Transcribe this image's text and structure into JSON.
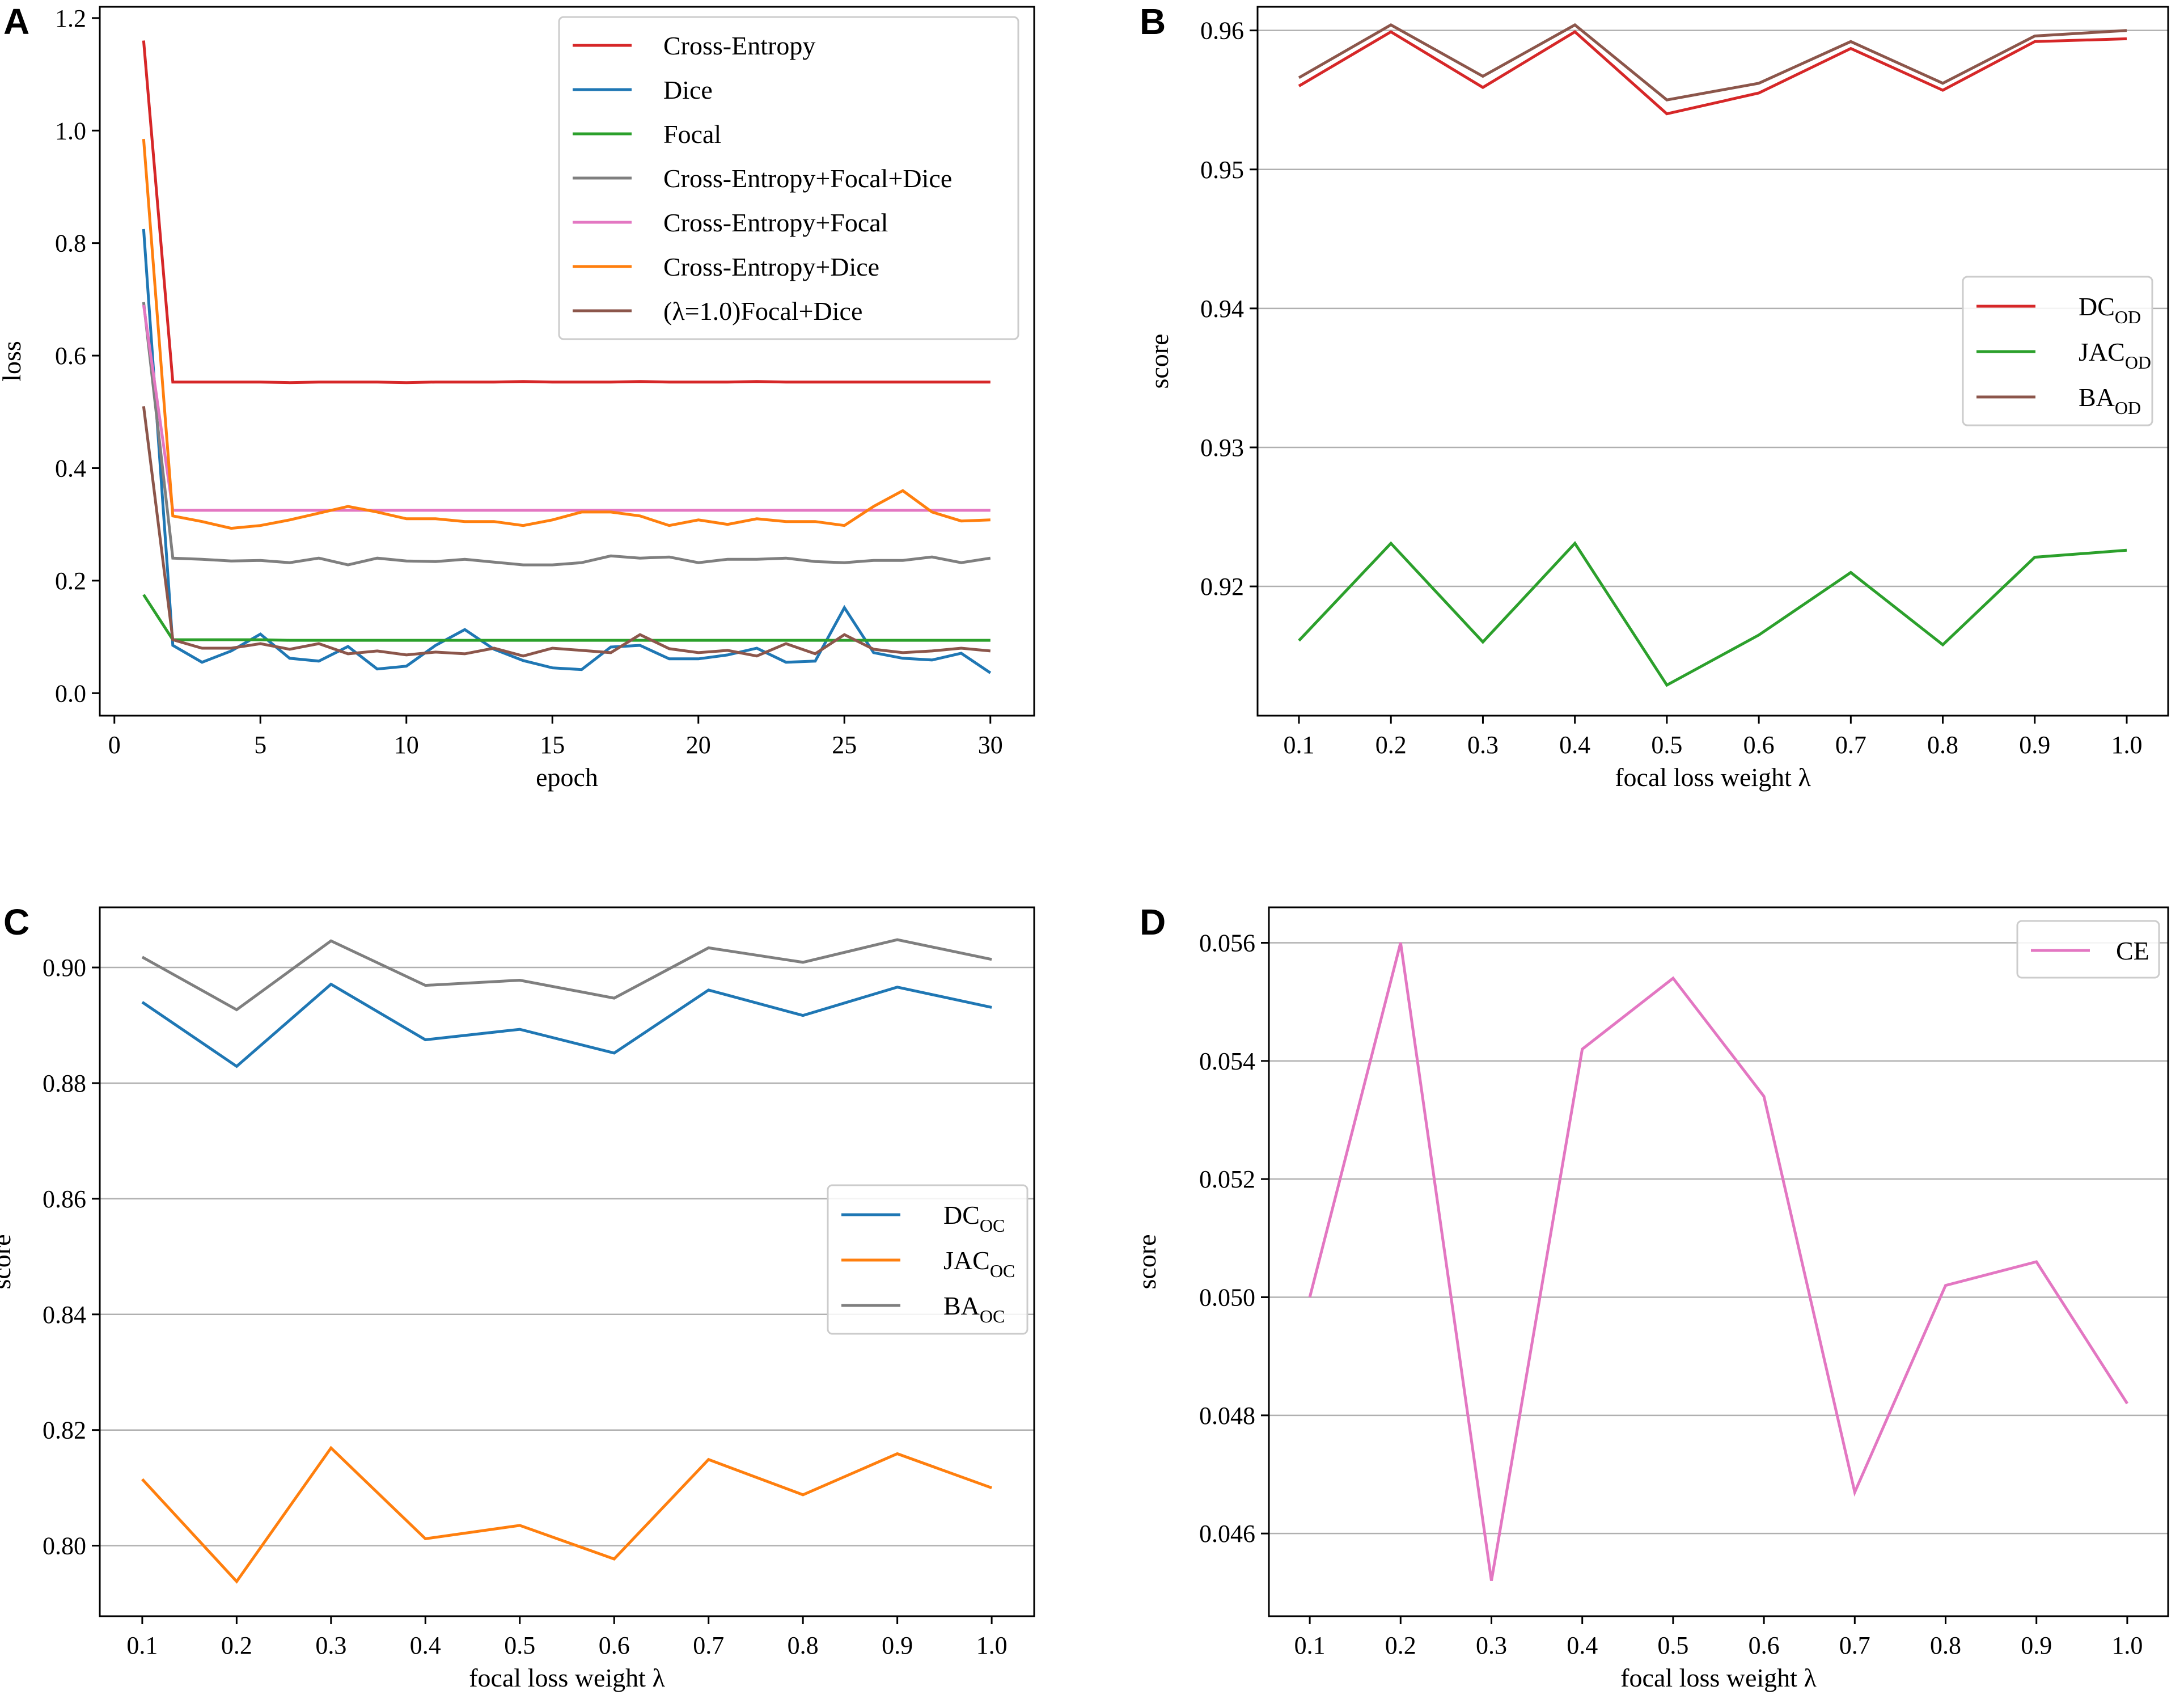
{
  "figure": "four-panel loss function comparison",
  "chart_data": [
    {
      "panel": "A",
      "type": "line",
      "xlabel": "epoch",
      "ylabel": "loss",
      "xlim": [
        -0.5,
        31.5
      ],
      "ylim": [
        -0.04,
        1.22
      ],
      "xticks": [
        0,
        5,
        10,
        15,
        20,
        25,
        30
      ],
      "yticks": [
        0.0,
        0.2,
        0.4,
        0.6,
        0.8,
        1.0,
        1.2
      ],
      "ytick_labels": [
        "0.0",
        "0.2",
        "0.4",
        "0.6",
        "0.8",
        "1.0",
        "1.2"
      ],
      "grid": false,
      "legend_position": "top-right",
      "x": [
        1,
        2,
        3,
        4,
        5,
        6,
        7,
        8,
        9,
        10,
        11,
        12,
        13,
        14,
        15,
        16,
        17,
        18,
        19,
        20,
        21,
        22,
        23,
        24,
        25,
        26,
        27,
        28,
        29,
        30
      ],
      "series": [
        {
          "name": "Cross-Entropy",
          "color": "#d62728",
          "values": [
            1.16,
            0.553,
            0.553,
            0.553,
            0.553,
            0.552,
            0.553,
            0.553,
            0.553,
            0.552,
            0.553,
            0.553,
            0.553,
            0.554,
            0.553,
            0.553,
            0.553,
            0.554,
            0.553,
            0.553,
            0.553,
            0.554,
            0.553,
            0.553,
            0.553,
            0.553,
            0.553,
            0.553,
            0.553,
            0.553
          ]
        },
        {
          "name": "Dice",
          "color": "#1f77b4",
          "values": [
            0.825,
            0.085,
            0.055,
            0.075,
            0.105,
            0.062,
            0.057,
            0.083,
            0.043,
            0.048,
            0.085,
            0.113,
            0.078,
            0.058,
            0.045,
            0.042,
            0.082,
            0.085,
            0.061,
            0.061,
            0.068,
            0.08,
            0.055,
            0.057,
            0.152,
            0.072,
            0.062,
            0.059,
            0.071,
            0.036
          ]
        },
        {
          "name": "Focal",
          "color": "#2ca02c",
          "values": [
            0.175,
            0.095,
            0.095,
            0.095,
            0.095,
            0.094,
            0.094,
            0.094,
            0.094,
            0.094,
            0.094,
            0.094,
            0.094,
            0.094,
            0.094,
            0.094,
            0.094,
            0.094,
            0.094,
            0.094,
            0.094,
            0.094,
            0.094,
            0.094,
            0.094,
            0.094,
            0.094,
            0.094,
            0.094,
            0.094
          ]
        },
        {
          "name": "Cross-Entropy+Focal+Dice",
          "color": "#7f7f7f",
          "values": [
            0.695,
            0.24,
            0.238,
            0.235,
            0.236,
            0.232,
            0.24,
            0.228,
            0.24,
            0.235,
            0.234,
            0.238,
            0.233,
            0.228,
            0.228,
            0.232,
            0.244,
            0.24,
            0.242,
            0.232,
            0.238,
            0.238,
            0.24,
            0.234,
            0.232,
            0.236,
            0.236,
            0.242,
            0.232,
            0.24
          ]
        },
        {
          "name": "Cross-Entropy+Focal",
          "color": "#e377c2",
          "values": [
            0.69,
            0.325,
            0.325,
            0.325,
            0.325,
            0.325,
            0.325,
            0.325,
            0.325,
            0.325,
            0.325,
            0.325,
            0.325,
            0.325,
            0.325,
            0.325,
            0.325,
            0.325,
            0.325,
            0.325,
            0.325,
            0.325,
            0.325,
            0.325,
            0.325,
            0.325,
            0.325,
            0.325,
            0.325,
            0.325
          ]
        },
        {
          "name": "Cross-Entropy+Dice",
          "color": "#ff7f0e",
          "values": [
            0.985,
            0.315,
            0.305,
            0.293,
            0.298,
            0.308,
            0.32,
            0.332,
            0.322,
            0.31,
            0.31,
            0.305,
            0.305,
            0.298,
            0.308,
            0.322,
            0.322,
            0.315,
            0.298,
            0.308,
            0.3,
            0.31,
            0.305,
            0.305,
            0.298,
            0.332,
            0.36,
            0.322,
            0.306,
            0.308
          ]
        },
        {
          "name": "(λ=1.0)Focal+Dice",
          "color": "#8c564b",
          "values": [
            0.51,
            0.095,
            0.08,
            0.08,
            0.088,
            0.078,
            0.088,
            0.07,
            0.075,
            0.068,
            0.073,
            0.07,
            0.08,
            0.066,
            0.08,
            0.076,
            0.072,
            0.104,
            0.079,
            0.072,
            0.076,
            0.066,
            0.088,
            0.07,
            0.104,
            0.078,
            0.072,
            0.075,
            0.08,
            0.075
          ]
        }
      ]
    },
    {
      "panel": "B",
      "type": "line",
      "xlabel": "focal loss weight λ",
      "ylabel": "score",
      "x": [
        0.1,
        0.2,
        0.3,
        0.4,
        0.5,
        0.6,
        0.7,
        0.8,
        0.9,
        1.0
      ],
      "xlim": [
        0.055,
        1.045
      ],
      "ylim": [
        0.9107,
        0.9617
      ],
      "yticks": [
        0.92,
        0.93,
        0.94,
        0.95,
        0.96
      ],
      "ytick_labels": [
        "0.92",
        "0.93",
        "0.94",
        "0.95",
        "0.96"
      ],
      "grid": "horizontal",
      "legend_position": "center-right",
      "series": [
        {
          "name": "DC",
          "sub": "OD",
          "color": "#d62728",
          "values": [
            0.956,
            0.9599,
            0.9559,
            0.9599,
            0.954,
            0.9555,
            0.9587,
            0.9557,
            0.9592,
            0.9594
          ]
        },
        {
          "name": "JAC",
          "sub": "OD",
          "color": "#2ca02c",
          "values": [
            0.9161,
            0.9231,
            0.916,
            0.9231,
            0.9129,
            0.9165,
            0.921,
            0.9158,
            0.9221,
            0.9226
          ]
        },
        {
          "name": "BA",
          "sub": "OD",
          "color": "#8c564b",
          "values": [
            0.9566,
            0.9604,
            0.9567,
            0.9604,
            0.955,
            0.9562,
            0.9592,
            0.9562,
            0.9596,
            0.96
          ]
        }
      ]
    },
    {
      "panel": "C",
      "type": "line",
      "xlabel": "focal loss weight λ",
      "ylabel": "score",
      "x": [
        0.1,
        0.2,
        0.3,
        0.4,
        0.5,
        0.6,
        0.7,
        0.8,
        0.9,
        1.0
      ],
      "xlim": [
        0.055,
        1.045
      ],
      "ylim": [
        0.7878,
        0.9104
      ],
      "yticks": [
        0.8,
        0.82,
        0.84,
        0.86,
        0.88,
        0.9
      ],
      "ytick_labels": [
        "0.80",
        "0.82",
        "0.84",
        "0.86",
        "0.88",
        "0.90"
      ],
      "grid": "horizontal",
      "legend_position": "center-right",
      "series": [
        {
          "name": "DC",
          "sub": "OC",
          "color": "#1f77b4",
          "values": [
            0.894,
            0.8829,
            0.8971,
            0.8875,
            0.8893,
            0.8852,
            0.8961,
            0.8917,
            0.8966,
            0.8931
          ]
        },
        {
          "name": "JAC",
          "sub": "OC",
          "color": "#ff7f0e",
          "values": [
            0.8115,
            0.7938,
            0.8169,
            0.8012,
            0.8035,
            0.7977,
            0.8149,
            0.8088,
            0.8159,
            0.81
          ]
        },
        {
          "name": "BA",
          "sub": "OC",
          "color": "#7f7f7f",
          "values": [
            0.9018,
            0.8927,
            0.9046,
            0.8969,
            0.8978,
            0.8947,
            0.9034,
            0.9009,
            0.9048,
            0.9014
          ]
        }
      ]
    },
    {
      "panel": "D",
      "type": "line",
      "xlabel": "focal loss weight λ",
      "ylabel": "score",
      "x": [
        0.1,
        0.2,
        0.3,
        0.4,
        0.5,
        0.6,
        0.7,
        0.8,
        0.9,
        1.0
      ],
      "xlim": [
        0.055,
        1.045
      ],
      "ylim": [
        0.0446,
        0.0566
      ],
      "yticks": [
        0.046,
        0.048,
        0.05,
        0.052,
        0.054,
        0.056
      ],
      "ytick_labels": [
        "0.046",
        "0.048",
        "0.050",
        "0.052",
        "0.054",
        "0.056"
      ],
      "grid": "horizontal",
      "legend_position": "top-right",
      "series": [
        {
          "name": "CE",
          "color": "#e377c2",
          "values": [
            0.05,
            0.056,
            0.0452,
            0.0542,
            0.0554,
            0.0534,
            0.0467,
            0.0502,
            0.0506,
            0.0482
          ]
        }
      ]
    }
  ]
}
